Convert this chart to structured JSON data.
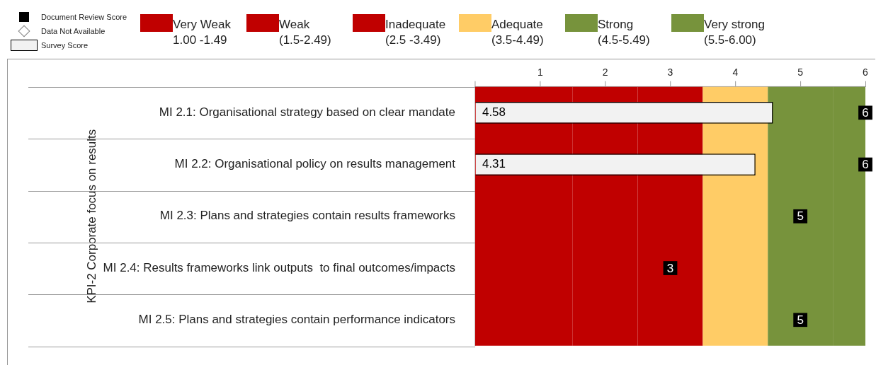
{
  "chart_data": {
    "type": "bar",
    "orientation": "horizontal",
    "ylabel": "KPI-2 Corporate focus on results",
    "categories": [
      "MI 2.1: Organisational strategy based on clear mandate",
      "MI 2.2: Organisational policy on results management",
      "MI 2.3: Plans and strategies contain results frameworks",
      "MI 2.4: Results frameworks link outputs  to final outcomes/impacts",
      "MI 2.5: Plans and strategies contain performance indicators"
    ],
    "series": [
      {
        "name": "Document Review Score",
        "type": "scatter",
        "marker": "square",
        "color": "#000000",
        "values": [
          6,
          6,
          5,
          3,
          5
        ]
      },
      {
        "name": "Data Not Available",
        "type": "scatter",
        "marker": "diamond",
        "color": "#7f7f7f",
        "values": [
          null,
          null,
          null,
          null,
          null
        ]
      },
      {
        "name": "Survey Score",
        "type": "bar",
        "color": "#f2f2f2",
        "values": [
          4.58,
          4.31,
          null,
          null,
          null
        ]
      }
    ],
    "xlim": [
      0,
      6
    ],
    "xticks": [
      {
        "value": 0,
        "label": null
      },
      1,
      2,
      3,
      4,
      5,
      6
    ],
    "bands": [
      {
        "axis": "x",
        "from": 0,
        "to": 1.5,
        "label": "Very Weak\n1.00 -1.49",
        "color": "#c00000"
      },
      {
        "axis": "x",
        "from": 1.5,
        "to": 2.5,
        "label": "Weak\n(1.5-2.49)",
        "color": "#c00000"
      },
      {
        "axis": "x",
        "from": 2.5,
        "to": 3.5,
        "label": "Inadequate\n(2.5 -3.49)",
        "color": "#c00000"
      },
      {
        "axis": "x",
        "from": 3.5,
        "to": 4.5,
        "label": "Adequate\n(3.5-4.49)",
        "color": "#ffcc66"
      },
      {
        "axis": "x",
        "from": 4.5,
        "to": 5.5,
        "label": "Strong\n(4.5-5.49)",
        "color": "#77933c"
      },
      {
        "axis": "x",
        "from": 5.5,
        "to": 6,
        "label": "Very strong\n(5.5-6.00)",
        "color": "#77933c"
      }
    ],
    "data_labels": true,
    "legend": "top left",
    "grid": false
  }
}
